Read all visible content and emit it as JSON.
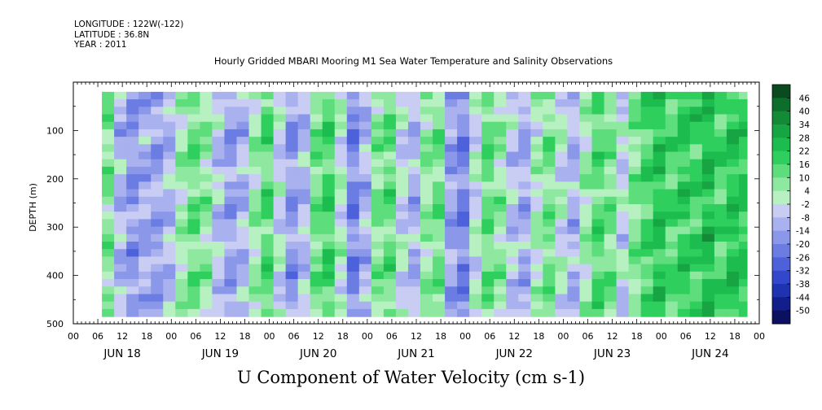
{
  "header": {
    "longitude": "LONGITUDE : 122W(-122)",
    "latitude": "LATITUDE : 36.8N",
    "year": "YEAR : 2011",
    "title": "Hourly Gridded MBARI Mooring M1 Sea Water Temperature and Salinity Observations"
  },
  "chart_data": {
    "type": "heatmap",
    "title": "Hourly Gridded MBARI Mooring M1 Sea Water Temperature and Salinity Observations",
    "subtitle": "U Component of Water Velocity (cm s-1)",
    "ylabel": "DEPTH (m)",
    "xlabel": "",
    "y_axis": {
      "range": [
        500,
        0
      ],
      "inverted": true,
      "ticks": [
        100,
        200,
        300,
        400,
        500
      ],
      "data_top": 20,
      "data_bottom": 485
    },
    "x_axis": {
      "hour_labels": [
        "00",
        "06",
        "12",
        "18",
        "00",
        "06",
        "12",
        "18",
        "00",
        "06",
        "12",
        "18",
        "00",
        "06",
        "12",
        "18",
        "00",
        "06",
        "12",
        "18",
        "00",
        "06",
        "12",
        "18",
        "00",
        "06",
        "12",
        "18",
        "00"
      ],
      "day_labels": [
        "JUN 18",
        "JUN 19",
        "JUN 20",
        "JUN 21",
        "JUN 22",
        "JUN 23",
        "JUN 24"
      ],
      "data_start_hour": 7,
      "data_end_hour": 165,
      "total_hours": 168
    },
    "colorbar": {
      "levels": [
        46,
        40,
        34,
        28,
        22,
        16,
        10,
        4,
        -2,
        -8,
        -14,
        -20,
        -26,
        -32,
        -38,
        -44,
        -50
      ],
      "colors": [
        "#0a4a1e",
        "#0d6e2b",
        "#128a36",
        "#17a443",
        "#1cbc4e",
        "#2fcf5e",
        "#5ddd7c",
        "#8ee89f",
        "#b7f1c2",
        "#c9cdf3",
        "#a9b1ee",
        "#8b97e9",
        "#6b7de2",
        "#4d62da",
        "#3247cc",
        "#1f33b0",
        "#121f8a",
        "#0b1160"
      ]
    },
    "columns": [
      {
        "hour": 7,
        "u": 8
      },
      {
        "hour": 10,
        "u": -10
      },
      {
        "hour": 13,
        "u": -16
      },
      {
        "hour": 16,
        "u": -12
      },
      {
        "hour": 19,
        "u": -14
      },
      {
        "hour": 22,
        "u": -8
      },
      {
        "hour": 25,
        "u": 4
      },
      {
        "hour": 28,
        "u": 12
      },
      {
        "hour": 31,
        "u": 6
      },
      {
        "hour": 34,
        "u": -6
      },
      {
        "hour": 37,
        "u": -14
      },
      {
        "hour": 40,
        "u": -10
      },
      {
        "hour": 43,
        "u": 4
      },
      {
        "hour": 46,
        "u": 14
      },
      {
        "hour": 49,
        "u": -4
      },
      {
        "hour": 52,
        "u": -16
      },
      {
        "hour": 55,
        "u": -8
      },
      {
        "hour": 58,
        "u": 10
      },
      {
        "hour": 61,
        "u": 16
      },
      {
        "hour": 64,
        "u": 0
      },
      {
        "hour": 67,
        "u": -20
      },
      {
        "hour": 70,
        "u": -10
      },
      {
        "hour": 73,
        "u": 8
      },
      {
        "hour": 76,
        "u": 12
      },
      {
        "hour": 79,
        "u": -4
      },
      {
        "hour": 82,
        "u": -10
      },
      {
        "hour": 85,
        "u": 6
      },
      {
        "hour": 88,
        "u": 10
      },
      {
        "hour": 91,
        "u": -14
      },
      {
        "hour": 94,
        "u": -20
      },
      {
        "hour": 97,
        "u": -2
      },
      {
        "hour": 100,
        "u": 12
      },
      {
        "hour": 103,
        "u": 6
      },
      {
        "hour": 106,
        "u": -6
      },
      {
        "hour": 109,
        "u": -12
      },
      {
        "hour": 112,
        "u": 2
      },
      {
        "hour": 115,
        "u": 10
      },
      {
        "hour": 118,
        "u": -2
      },
      {
        "hour": 121,
        "u": -10
      },
      {
        "hour": 124,
        "u": 4
      },
      {
        "hour": 127,
        "u": 14
      },
      {
        "hour": 130,
        "u": 10
      },
      {
        "hour": 133,
        "u": -4
      },
      {
        "hour": 136,
        "u": 8
      },
      {
        "hour": 139,
        "u": 16
      },
      {
        "hour": 142,
        "u": 22
      },
      {
        "hour": 145,
        "u": 14
      },
      {
        "hour": 148,
        "u": 20
      },
      {
        "hour": 151,
        "u": 18
      },
      {
        "hour": 154,
        "u": 24
      },
      {
        "hour": 157,
        "u": 16
      },
      {
        "hour": 160,
        "u": 22
      },
      {
        "hour": 163,
        "u": 20
      }
    ]
  }
}
